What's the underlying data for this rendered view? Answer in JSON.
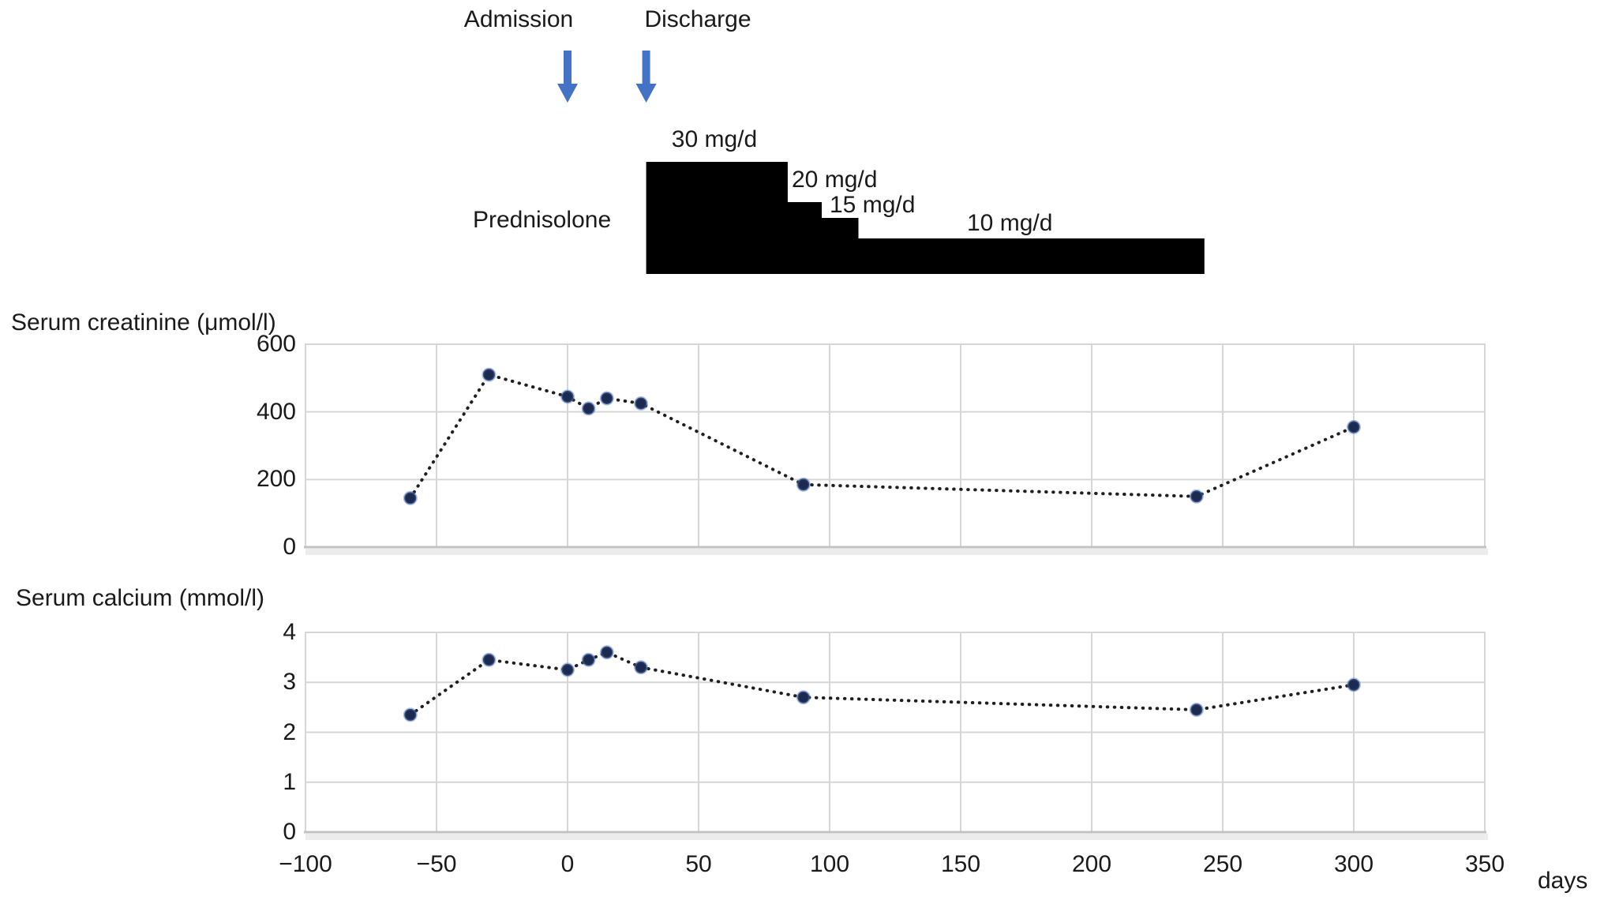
{
  "events": [
    {
      "label": "Admission",
      "day": 0
    },
    {
      "label": "Discharge",
      "day": 30
    }
  ],
  "prednisolone_schedule": {
    "label": "Prednisolone",
    "steps": [
      {
        "dose": "30 mg/d",
        "start_day": 30,
        "end_day": 84
      },
      {
        "dose": "20 mg/d",
        "start_day": 84,
        "end_day": 97
      },
      {
        "dose": "15 mg/d",
        "start_day": 97,
        "end_day": 111
      },
      {
        "dose": "10 mg/d",
        "start_day": 111,
        "end_day": 243
      }
    ]
  },
  "x_axis_label": "days",
  "chart_data": [
    {
      "type": "line",
      "title": "Serum creatinine (μmol/l)",
      "x": [
        -60,
        -30,
        0,
        8,
        15,
        28,
        90,
        240,
        300
      ],
      "values": [
        145,
        510,
        445,
        410,
        440,
        425,
        185,
        150,
        355
      ],
      "xlim": [
        -100,
        350
      ],
      "ylim": [
        0,
        600
      ],
      "yticks": [
        0,
        200,
        400,
        600
      ],
      "xticks": [
        -100,
        -50,
        0,
        50,
        100,
        150,
        200,
        250,
        300,
        350
      ],
      "xlabel": "days",
      "line_style": "dotted",
      "marker": "circle",
      "grid": true,
      "legend": false
    },
    {
      "type": "line",
      "title": "Serum calcium (mmol/l)",
      "x": [
        -60,
        -30,
        0,
        8,
        15,
        28,
        90,
        240,
        300
      ],
      "values": [
        2.35,
        3.45,
        3.25,
        3.45,
        3.6,
        3.3,
        2.7,
        2.45,
        2.95
      ],
      "xlim": [
        -100,
        350
      ],
      "ylim": [
        0,
        4
      ],
      "yticks": [
        0,
        1,
        2,
        3,
        4
      ],
      "xticks": [
        -100,
        -50,
        0,
        50,
        100,
        150,
        200,
        250,
        300,
        350
      ],
      "xlabel": "days",
      "line_style": "dotted",
      "marker": "circle",
      "grid": true,
      "legend": false
    }
  ],
  "colors": {
    "arrow_blue": "#4472c4",
    "marker_navy": "#1b2a4e",
    "marker_ring": "#4a6fb5",
    "dotted_line": "#1f1f1f",
    "gridline": "#d6d6d6",
    "axis_line": "#c2c2c2",
    "axis_band": "#ececec",
    "prednisolone_bar": "#000000"
  }
}
